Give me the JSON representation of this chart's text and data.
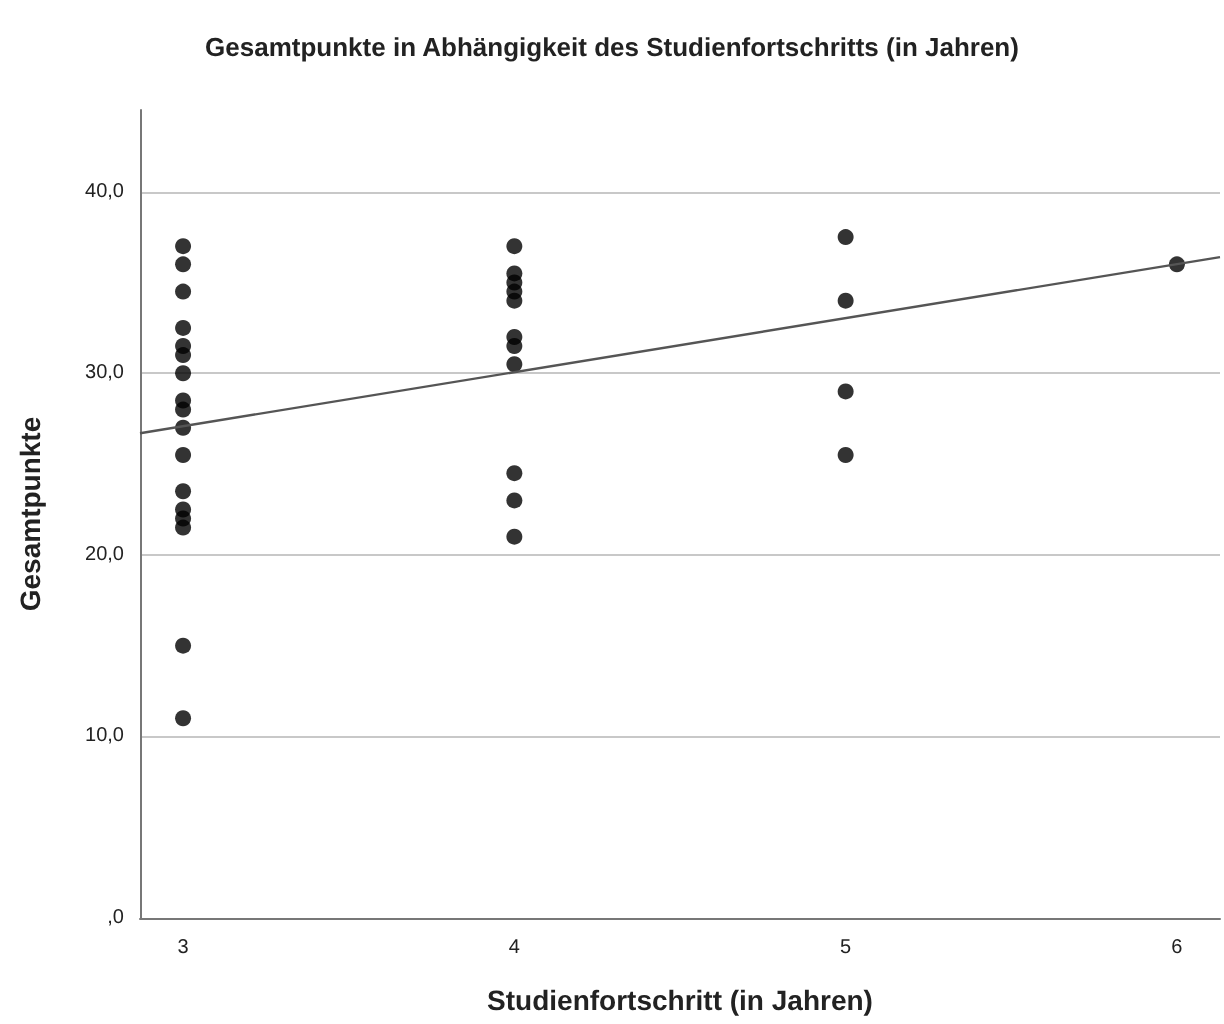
{
  "chart_data": {
    "type": "scatter",
    "title": "Gesamtpunkte in Abhängigkeit des Studienfortschritts (in Jahren)",
    "xlabel": "Studienfortschritt (in Jahren)",
    "ylabel": "Gesamtpunkte",
    "xlim": [
      2.87,
      6.13
    ],
    "xticks": [
      3,
      4,
      5,
      6
    ],
    "ylim": [
      0,
      44.5
    ],
    "yticks": [
      {
        "value": 0,
        "label": ",0"
      },
      {
        "value": 10,
        "label": "10,0"
      },
      {
        "value": 20,
        "label": "20,0"
      },
      {
        "value": 30,
        "label": "30,0"
      },
      {
        "value": 40,
        "label": "40,0"
      }
    ],
    "grid": "y",
    "marker": "circle",
    "series": [
      {
        "color": "#000000",
        "x": [
          3,
          3,
          3,
          3,
          3,
          3,
          3,
          3,
          3,
          3,
          3,
          3,
          3,
          3,
          3,
          3,
          3,
          4,
          4,
          4,
          4,
          4,
          4,
          4,
          4,
          4,
          4,
          4,
          5,
          5,
          5,
          5,
          6
        ],
        "values": [
          37,
          36,
          34.5,
          32.5,
          31.5,
          31,
          30,
          28.5,
          28,
          27,
          25.5,
          23.5,
          22.5,
          22,
          21.5,
          15,
          11,
          37,
          35.5,
          35,
          34.5,
          34,
          32,
          31.5,
          30.5,
          24.5,
          23,
          21,
          37.5,
          34,
          29,
          25.5,
          36
        ]
      },
      {
        "type": "line",
        "color": "#555555",
        "marker": "none",
        "x": [
          2.87,
          6.13
        ],
        "values": [
          26.7,
          36.4
        ]
      }
    ]
  }
}
